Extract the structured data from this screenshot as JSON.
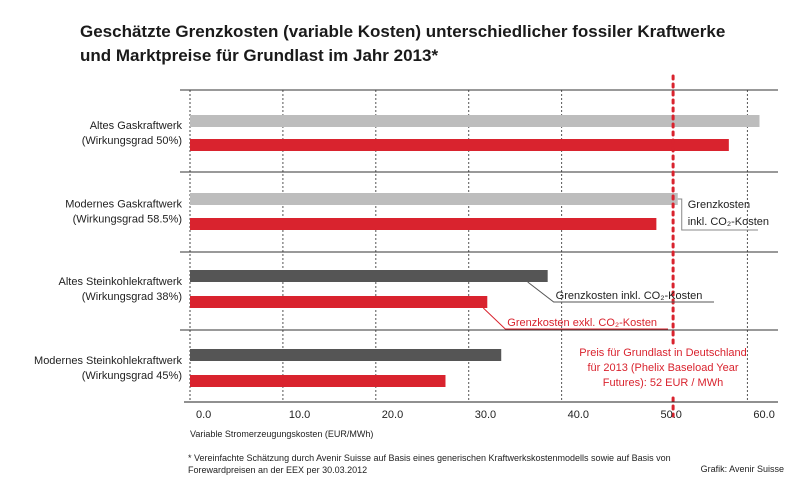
{
  "title_line1": "Geschätzte Grenzkosten (variable Kosten) unterschiedlicher fossiler Kraftwerke",
  "title_line2": "und Marktpreise für Grundlast im Jahr 2013*",
  "footnote_line1": "* Vereinfachte Schätzung durch Avenir Suisse auf Basis eines generischen Kraftwerkskostenmodells sowie auf Basis von",
  "footnote_line2": "Forewardpreisen an der EEX per 30.03.2012",
  "credit": "Grafik: Avenir Suisse",
  "colors": {
    "gas_incl": "#bdbdbd",
    "coal_incl": "#555555",
    "excl": "#d9232e",
    "price_line": "#d9232e"
  },
  "chart_data": {
    "type": "bar",
    "orientation": "horizontal",
    "xlabel": "Variable Stromerzeugungskosten (EUR/MWh)",
    "xlim": [
      0,
      62
    ],
    "x_ticks": [
      "0.0",
      "10.0",
      "20.0",
      "30.0",
      "40.0",
      "50.0",
      "60.0"
    ],
    "categories": [
      {
        "name_line1": "Altes Gaskraftwerk",
        "name_line2": "(Wirkungsgrad 50%)"
      },
      {
        "name_line1": "Modernes Gaskraftwerk",
        "name_line2": "(Wirkungsgrad 58.5%)"
      },
      {
        "name_line1": "Altes Steinkohlekraftwerk",
        "name_line2": "(Wirkungsgrad 38%)"
      },
      {
        "name_line1": "Modernes Steinkohlekraftwerk",
        "name_line2": "(Wirkungsgrad 45%)"
      }
    ],
    "incl_co2": [
      61.3,
      52.5,
      38.5,
      33.5
    ],
    "excl_co2": [
      58.0,
      50.2,
      32.0,
      27.5
    ],
    "price_line_value": 52,
    "annotations": {
      "gas_incl_line1": "Grenzkosten",
      "gas_incl_line2": "inkl. CO₂-Kosten",
      "coal_incl": "Grenzkosten inkl. CO₂-Kosten",
      "excl": "Grenzkosten exkl. CO₂-Kosten",
      "price_line1": "Preis für Grundlast in Deutschland",
      "price_line2": "für 2013 (Phelix Baseload Year",
      "price_line3": "Futures): 52 EUR / MWh"
    }
  }
}
